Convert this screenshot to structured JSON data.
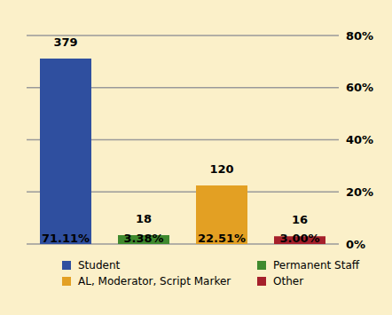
{
  "chart_data": {
    "type": "bar",
    "categories": [
      "Student",
      "Permanent Staff",
      "AL, Moderator, Script Marker",
      "Other"
    ],
    "values": [
      71.11,
      3.38,
      22.51,
      3.0
    ],
    "value_labels": [
      "71.11%",
      "3.38%",
      "22.51%",
      "3.00%"
    ],
    "counts": [
      379,
      18,
      120,
      16
    ],
    "colors": [
      "#2f4f9f",
      "#3f8a2e",
      "#e3a023",
      "#a5202b"
    ],
    "ylim": [
      0,
      80
    ],
    "yticks": [
      {
        "value": 0,
        "label": "0%"
      },
      {
        "value": 20,
        "label": "20%"
      },
      {
        "value": 40,
        "label": "40%"
      },
      {
        "value": 60,
        "label": "60%"
      },
      {
        "value": 80,
        "label": "80%"
      }
    ],
    "grid": true,
    "data_labels": true,
    "tick_labels": "y",
    "legend": "bottom"
  }
}
